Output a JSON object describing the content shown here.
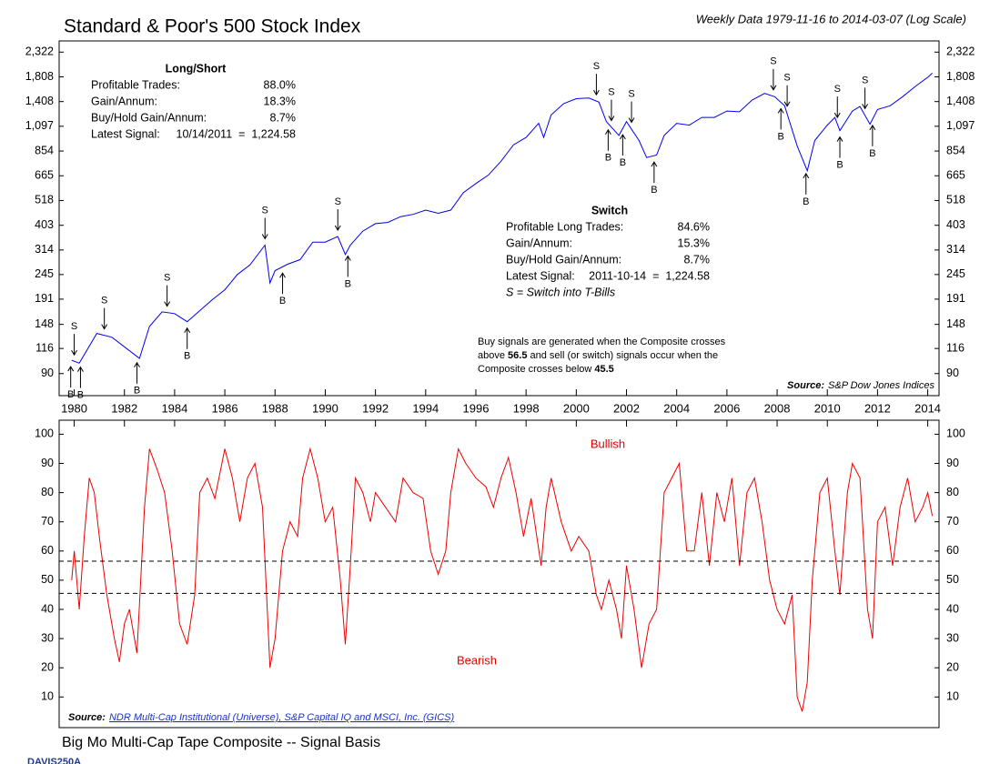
{
  "chart_data": [
    {
      "type": "line",
      "title": "Standard & Poor's 500 Stock Index",
      "subtitle": "Weekly Data 1979-11-16 to 2014-03-07 (Log Scale)",
      "log_scale": true,
      "color": "#0000ee",
      "xlim": [
        1979.4,
        2014.45
      ],
      "xticks": [
        1980,
        1982,
        1984,
        1986,
        1988,
        1990,
        1992,
        1994,
        1996,
        1998,
        2000,
        2002,
        2004,
        2006,
        2008,
        2010,
        2012,
        2014
      ],
      "ylim": [
        72,
        2600
      ],
      "yticks": [
        90,
        116,
        148,
        191,
        245,
        314,
        403,
        518,
        665,
        854,
        {
          "value": 1097,
          "label": "1,097"
        },
        {
          "value": 1408,
          "label": "1,408"
        },
        {
          "value": 1808,
          "label": "1,808"
        },
        {
          "value": 2322,
          "label": "2,322"
        }
      ],
      "x": [
        1979.9,
        1980.2,
        1980.9,
        1981.5,
        1982.0,
        1982.6,
        1983.0,
        1983.5,
        1984.0,
        1984.5,
        1985.0,
        1985.5,
        1986.0,
        1986.5,
        1987.0,
        1987.6,
        1987.8,
        1988.0,
        1988.5,
        1989.0,
        1989.5,
        1990.0,
        1990.5,
        1990.8,
        1991.0,
        1991.5,
        1992.0,
        1992.5,
        1993.0,
        1993.5,
        1994.0,
        1994.5,
        1995.0,
        1995.5,
        1996.0,
        1996.5,
        1997.0,
        1997.5,
        1998.0,
        1998.5,
        1998.7,
        1999.0,
        1999.5,
        2000.0,
        2000.5,
        2000.9,
        2001.2,
        2001.7,
        2002.0,
        2002.5,
        2002.8,
        2003.2,
        2003.5,
        2004.0,
        2004.5,
        2005.0,
        2005.5,
        2006.0,
        2006.5,
        2007.0,
        2007.5,
        2007.9,
        2008.3,
        2008.8,
        2009.2,
        2009.5,
        2010.0,
        2010.3,
        2010.5,
        2011.0,
        2011.3,
        2011.7,
        2012.0,
        2012.5,
        2013.0,
        2013.5,
        2014.0,
        2014.18
      ],
      "values": [
        103,
        100,
        135,
        130,
        118,
        105,
        145,
        168,
        165,
        152,
        170,
        190,
        210,
        245,
        270,
        330,
        225,
        255,
        272,
        285,
        340,
        340,
        360,
        300,
        330,
        380,
        410,
        415,
        440,
        450,
        470,
        455,
        470,
        560,
        615,
        670,
        770,
        910,
        980,
        1130,
        980,
        1230,
        1380,
        1450,
        1460,
        1400,
        1150,
        1000,
        1150,
        950,
        800,
        820,
        1000,
        1130,
        1110,
        1200,
        1200,
        1280,
        1270,
        1430,
        1530,
        1480,
        1350,
        900,
        700,
        950,
        1110,
        1200,
        1050,
        1280,
        1340,
        1120,
        1300,
        1350,
        1480,
        1640,
        1800,
        1878
      ],
      "signals": [
        {
          "label": "B",
          "x": 1979.86
        },
        {
          "label": "S",
          "x": 1980.0
        },
        {
          "label": "B",
          "x": 1980.25
        },
        {
          "label": "S",
          "x": 1981.2
        },
        {
          "label": "B",
          "x": 1982.5
        },
        {
          "label": "S",
          "x": 1983.7
        },
        {
          "label": "B",
          "x": 1984.5
        },
        {
          "label": "S",
          "x": 1987.6
        },
        {
          "label": "B",
          "x": 1988.3
        },
        {
          "label": "S",
          "x": 1990.5
        },
        {
          "label": "B",
          "x": 1990.9
        },
        {
          "label": "S",
          "x": 2000.8
        },
        {
          "label": "B",
          "x": 2001.27
        },
        {
          "label": "S",
          "x": 2001.4
        },
        {
          "label": "B",
          "x": 2001.85
        },
        {
          "label": "S",
          "x": 2002.2
        },
        {
          "label": "B",
          "x": 2003.1
        },
        {
          "label": "S",
          "x": 2007.85
        },
        {
          "label": "B",
          "x": 2008.15
        },
        {
          "label": "S",
          "x": 2008.4
        },
        {
          "label": "B",
          "x": 2009.15
        },
        {
          "label": "S",
          "x": 2010.4
        },
        {
          "label": "B",
          "x": 2010.5
        },
        {
          "label": "S",
          "x": 2011.5
        },
        {
          "label": "B",
          "x": 2011.8
        }
      ],
      "long_short": {
        "title": "Long/Short",
        "rows": [
          [
            "Profitable Trades:",
            "88.0%"
          ],
          [
            "Gain/Annum:",
            "18.3%"
          ],
          [
            "Buy/Hold Gain/Annum:",
            "8.7%"
          ],
          [
            "Latest Signal:",
            "10/14/2011  =  1,224.58"
          ]
        ]
      },
      "switch": {
        "title": "Switch",
        "rows": [
          [
            "Profitable Long Trades:",
            "84.6%"
          ],
          [
            "Gain/Annum:",
            "15.3%"
          ],
          [
            "Buy/Hold Gain/Annum:",
            "8.7%"
          ],
          [
            "Latest Signal:",
            "2011-10-14  =  1,224.58"
          ]
        ],
        "note": "S = Switch into T-Bills"
      },
      "source_label": "Source:",
      "source": "S&P Dow Jones Indices"
    },
    {
      "type": "line",
      "title": "Big Mo Multi-Cap Tape Composite -- Signal Basis",
      "color": "#ee0000",
      "xlim": [
        1979.4,
        2014.45
      ],
      "ylim": [
        -0.5,
        104.8
      ],
      "yticks": [
        10,
        20,
        30,
        40,
        50,
        60,
        70,
        80,
        90,
        100
      ],
      "thresholds": [
        56.5,
        45.5
      ],
      "note": [
        "Buy signals are generated when the Composite crosses",
        "above ",
        " and sell (or switch) signals occur when the",
        "Composite crosses below "
      ],
      "annotations": [
        "Bullish",
        "Bearish"
      ],
      "x": [
        1979.9,
        1980.0,
        1980.2,
        1980.4,
        1980.6,
        1980.8,
        1981.0,
        1981.3,
        1981.6,
        1981.8,
        1982.0,
        1982.2,
        1982.5,
        1982.8,
        1983.0,
        1983.3,
        1983.6,
        1983.9,
        1984.2,
        1984.5,
        1984.8,
        1985.0,
        1985.3,
        1985.6,
        1986.0,
        1986.3,
        1986.6,
        1986.9,
        1987.2,
        1987.5,
        1987.8,
        1988.0,
        1988.3,
        1988.6,
        1988.9,
        1989.1,
        1989.4,
        1989.7,
        1990.0,
        1990.3,
        1990.6,
        1990.8,
        1991.0,
        1991.2,
        1991.5,
        1991.8,
        1992.0,
        1992.4,
        1992.8,
        1993.1,
        1993.5,
        1993.9,
        1994.2,
        1994.5,
        1994.8,
        1995.0,
        1995.3,
        1995.6,
        1996.0,
        1996.4,
        1996.7,
        1997.0,
        1997.3,
        1997.6,
        1997.9,
        1998.2,
        1998.6,
        1998.8,
        1999.0,
        1999.4,
        1999.8,
        2000.1,
        2000.5,
        2000.8,
        2001.0,
        2001.3,
        2001.6,
        2001.8,
        2002.0,
        2002.3,
        2002.6,
        2002.9,
        2003.2,
        2003.5,
        2003.8,
        2004.1,
        2004.4,
        2004.7,
        2005.0,
        2005.3,
        2005.6,
        2005.9,
        2006.2,
        2006.5,
        2006.8,
        2007.1,
        2007.4,
        2007.7,
        2008.0,
        2008.3,
        2008.6,
        2008.8,
        2009.0,
        2009.2,
        2009.4,
        2009.7,
        2010.0,
        2010.3,
        2010.5,
        2010.8,
        2011.0,
        2011.3,
        2011.6,
        2011.8,
        2012.0,
        2012.3,
        2012.6,
        2012.9,
        2013.2,
        2013.5,
        2013.8,
        2014.0,
        2014.18
      ],
      "values": [
        50,
        60,
        40,
        65,
        85,
        80,
        65,
        45,
        30,
        22,
        35,
        40,
        25,
        75,
        95,
        88,
        80,
        60,
        35,
        28,
        45,
        80,
        85,
        78,
        95,
        85,
        70,
        85,
        90,
        75,
        20,
        30,
        60,
        70,
        65,
        85,
        95,
        85,
        70,
        75,
        50,
        28,
        55,
        85,
        80,
        70,
        80,
        75,
        70,
        85,
        80,
        78,
        60,
        52,
        60,
        80,
        95,
        90,
        85,
        82,
        75,
        85,
        92,
        80,
        65,
        78,
        55,
        75,
        85,
        70,
        60,
        65,
        60,
        45,
        40,
        50,
        40,
        30,
        55,
        40,
        20,
        35,
        40,
        80,
        85,
        90,
        60,
        60,
        80,
        55,
        80,
        70,
        85,
        55,
        80,
        85,
        70,
        50,
        40,
        35,
        45,
        10,
        5,
        15,
        50,
        80,
        85,
        60,
        45,
        80,
        90,
        85,
        40,
        30,
        70,
        75,
        55,
        75,
        85,
        70,
        75,
        80,
        72
      ],
      "source_label": "Source:",
      "source": "NDR Multi-Cap Institutional (Universe), S&P Capital IQ and MSCI, Inc. (GICS)"
    }
  ],
  "footer": "DAVIS250A"
}
